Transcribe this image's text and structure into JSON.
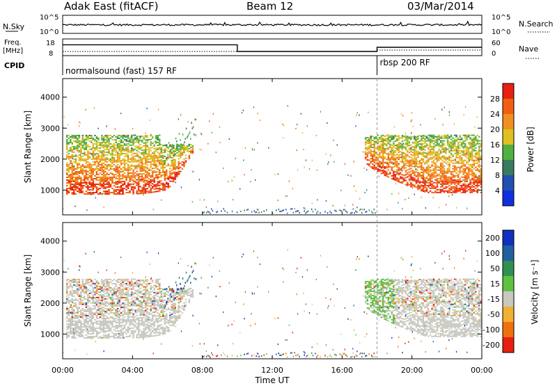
{
  "header": {
    "station": "Adak East (fitACF)",
    "beam": "Beam 12",
    "date": "03/Mar/2014"
  },
  "params": {
    "nsky_label": "N.Sky",
    "nsearch_label": "N.Search",
    "nsky_ticks": [
      "10^5",
      "10^0"
    ],
    "nsearch_ticks": [
      "10^5",
      "10^0"
    ],
    "freq_label_1": "Freq.",
    "freq_label_2": "[MHz]",
    "freq_ticks": [
      "18",
      "8"
    ],
    "nave_label": "Nave",
    "nave_ticks": [
      "60",
      "0"
    ],
    "cpid_label": "CPID",
    "cpid_segments": [
      {
        "label": "normalsound (fast) 157 RF",
        "start_hour": 0
      },
      {
        "label": "rbsp 200 RF",
        "start_hour": 18
      }
    ],
    "freq_steps": [
      {
        "start": 0,
        "end": 10,
        "mhz": 14.5
      },
      {
        "start": 10,
        "end": 18,
        "mhz": 10.5
      },
      {
        "start": 18,
        "end": 24,
        "mhz": 13.0
      }
    ]
  },
  "x_axis": {
    "ticks": [
      "00:00",
      "04:00",
      "08:00",
      "12:00",
      "16:00",
      "20:00",
      "00:00"
    ],
    "label": "Time UT",
    "range_hours": [
      0,
      24
    ]
  },
  "colorbars": {
    "power": {
      "label": "Power [dB]",
      "ticks": [
        "4",
        "8",
        "12",
        "16",
        "20",
        "24",
        "28"
      ],
      "colors": [
        "#1030e0",
        "#2050b0",
        "#3a7a60",
        "#50b040",
        "#e0c020",
        "#f09020",
        "#f06010",
        "#e82010"
      ]
    },
    "velocity": {
      "label": "Velocity [m s⁻¹]",
      "ticks": [
        "200",
        "100",
        "50",
        "15",
        "-15",
        "-50",
        "-100",
        "-200"
      ],
      "colors": [
        "#1030c0",
        "#2060a0",
        "#309050",
        "#60c040",
        "#c8c8c0",
        "#f0b030",
        "#f07010",
        "#e82010"
      ]
    }
  },
  "chart_data": [
    {
      "type": "heatmap",
      "name": "power",
      "xlabel": "Time UT",
      "ylabel": "Slant Range [km]",
      "xlim": [
        0,
        24
      ],
      "ylim": [
        200,
        4600
      ],
      "y_ticks": [
        1000,
        2000,
        3000,
        4000
      ],
      "colorbar_label": "Power [dB]",
      "features": [
        {
          "region": "evening-band",
          "start_hour": 0.2,
          "end_hour": 7.4,
          "range_km": [
            900,
            2700
          ],
          "power_db_typical": 24
        },
        {
          "region": "morning-band",
          "start_hour": 17.3,
          "end_hour": 24,
          "range_km": [
            900,
            2700
          ],
          "power_db_typical": 24
        },
        {
          "region": "ground-clutter",
          "start_hour": 8,
          "end_hour": 18,
          "range_km": [
            200,
            400
          ],
          "power_db_typical": 8
        }
      ]
    },
    {
      "type": "heatmap",
      "name": "velocity",
      "xlabel": "Time UT",
      "ylabel": "Slant Range [km]",
      "xlim": [
        0,
        24
      ],
      "ylim": [
        200,
        4600
      ],
      "y_ticks": [
        1000,
        2000,
        3000,
        4000
      ],
      "colorbar_label": "Velocity [m s⁻¹]",
      "features": [
        {
          "region": "evening-band",
          "start_hour": 0.2,
          "end_hour": 7.4,
          "range_km": [
            900,
            2700
          ],
          "velocity_typical": 0
        },
        {
          "region": "morning-band",
          "start_hour": 17.3,
          "end_hour": 24,
          "range_km": [
            900,
            2700
          ],
          "velocity_typical": 0
        }
      ]
    }
  ]
}
